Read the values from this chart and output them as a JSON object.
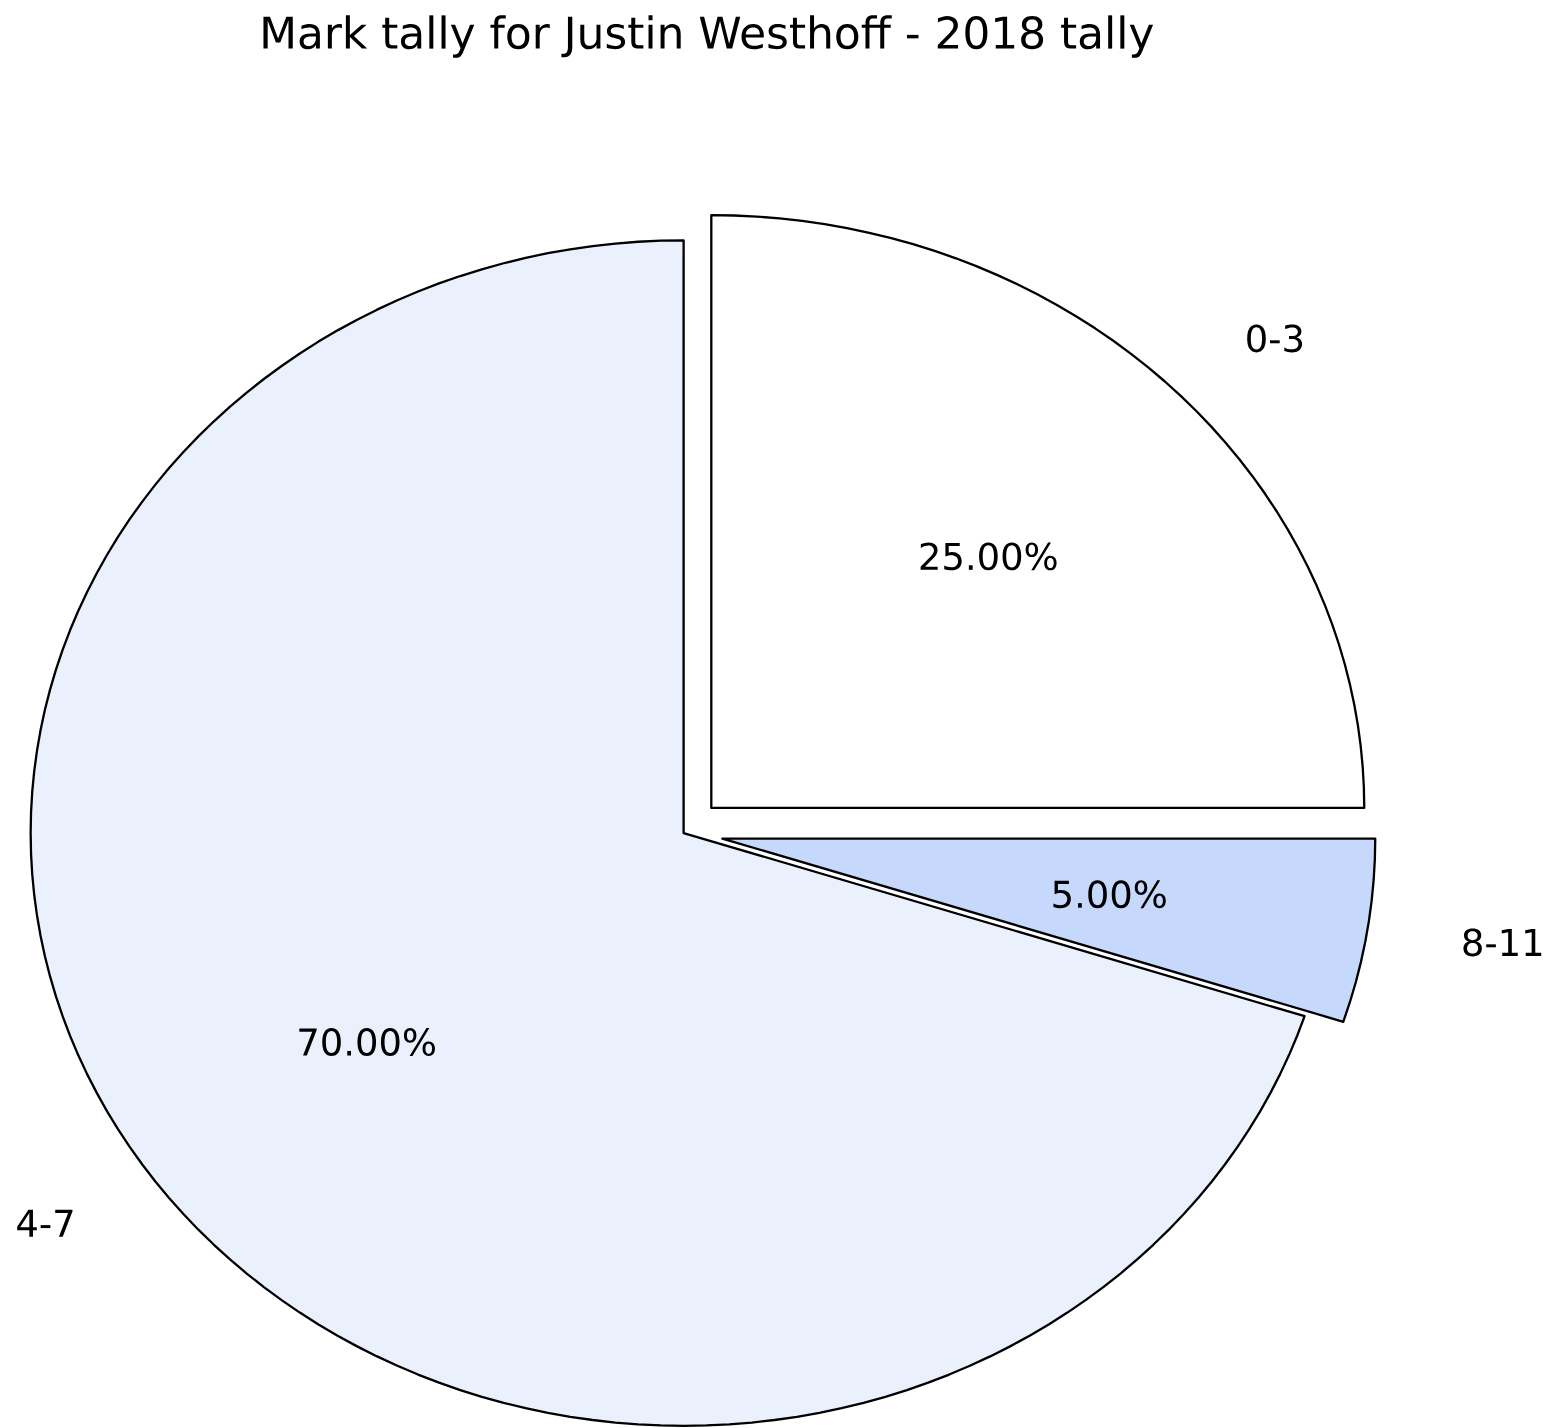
{
  "chart_data": {
    "type": "pie",
    "title": "Mark tally for Justin Westhoff - 2018 tally",
    "categories": [
      "0-3",
      "8-11",
      "4-7"
    ],
    "values": [
      25,
      5,
      70
    ],
    "value_labels": [
      "25.00%",
      "5.00%",
      "70.00%"
    ],
    "colors": [
      "#ffffff",
      "#c6d9fd",
      "#eaf1fd"
    ]
  }
}
